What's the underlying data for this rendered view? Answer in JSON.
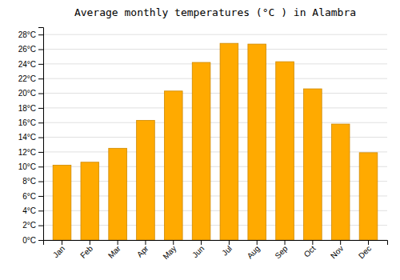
{
  "chart_data": {
    "type": "bar",
    "title": "Average monthly temperatures (°C ) in Alambra",
    "categories": [
      "Jan",
      "Feb",
      "Mar",
      "Apr",
      "May",
      "Jun",
      "Jul",
      "Aug",
      "Sep",
      "Oct",
      "Nov",
      "Dec"
    ],
    "values": [
      10.2,
      10.6,
      12.5,
      16.3,
      20.3,
      24.2,
      26.8,
      26.7,
      24.3,
      20.6,
      15.8,
      11.9
    ],
    "color": "#FFAA00",
    "ylim": [
      0,
      29
    ],
    "yticks": [
      {
        "value": 0,
        "label": "0°C"
      },
      {
        "value": 2,
        "label": "2°C"
      },
      {
        "value": 4,
        "label": "4°C"
      },
      {
        "value": 6,
        "label": "6°C"
      },
      {
        "value": 8,
        "label": "8°C"
      },
      {
        "value": 10,
        "label": "10°C"
      },
      {
        "value": 12,
        "label": "12°C"
      },
      {
        "value": 14,
        "label": "14°C"
      },
      {
        "value": 16,
        "label": "16°C"
      },
      {
        "value": 18,
        "label": "18°C"
      },
      {
        "value": 20,
        "label": "20°C"
      },
      {
        "value": 22,
        "label": "22°C"
      },
      {
        "value": 24,
        "label": "24°C"
      },
      {
        "value": 26,
        "label": "26°C"
      },
      {
        "value": 28,
        "label": "28°C"
      }
    ],
    "grid": true
  }
}
